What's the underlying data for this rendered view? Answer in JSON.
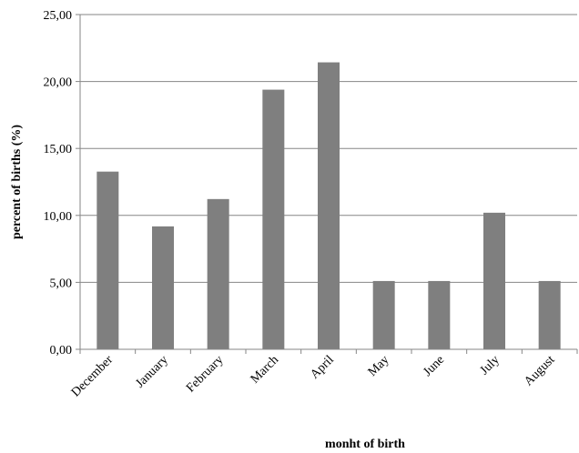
{
  "chart_data": {
    "type": "bar",
    "title": "",
    "xlabel": "monht of birth",
    "ylabel": "percent of births (%)",
    "categories": [
      "December",
      "January",
      "February",
      "March",
      "April",
      "May",
      "June",
      "July",
      "August"
    ],
    "values": [
      13.27,
      9.18,
      11.22,
      19.39,
      21.43,
      5.1,
      5.1,
      10.2,
      5.1
    ],
    "ylim": [
      0,
      25
    ],
    "yticks": [
      0,
      5,
      10,
      15,
      20,
      25
    ],
    "ytick_labels": [
      "0,00",
      "5,00",
      "10,00",
      "15,00",
      "20,00",
      "25,00"
    ],
    "grid": true,
    "legend": "none",
    "colors": {
      "bar": "#7f7f7f",
      "grid": "#868686",
      "axis": "#868686"
    }
  }
}
